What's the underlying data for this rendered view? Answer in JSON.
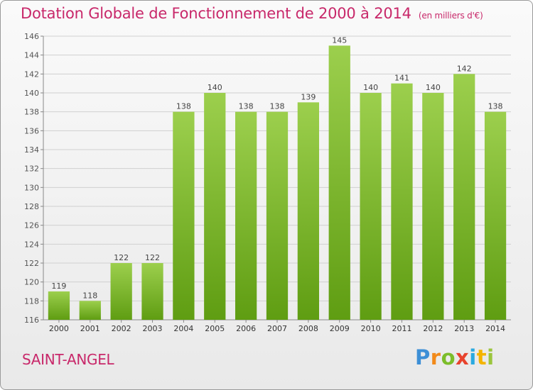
{
  "title": "Dotation Globale de Fonctionnement de 2000 à 2014",
  "unit_note": "(en milliers d'€)",
  "commune": "SAINT-ANGEL",
  "logo": {
    "text": "Proxiti",
    "letters": [
      "P",
      "r",
      "o",
      "x",
      "i",
      "t",
      "i"
    ]
  },
  "colors": {
    "bar_light": "#9ccf4d",
    "bar_dark": "#5f9d12",
    "title": "#c8286a",
    "grid": "#d0d0d0"
  },
  "chart_data": {
    "type": "bar",
    "categories": [
      "2000",
      "2001",
      "2002",
      "2003",
      "2004",
      "2005",
      "2006",
      "2007",
      "2008",
      "2009",
      "2010",
      "2011",
      "2012",
      "2013",
      "2014"
    ],
    "values": [
      119,
      118,
      122,
      122,
      138,
      140,
      138,
      138,
      139,
      145,
      140,
      141,
      140,
      142,
      138
    ],
    "ylim": [
      116,
      146
    ],
    "yticks": [
      116,
      118,
      120,
      122,
      124,
      126,
      128,
      130,
      132,
      134,
      136,
      138,
      140,
      142,
      144,
      146
    ],
    "grid": true,
    "data_labels": true,
    "legend": "none"
  }
}
